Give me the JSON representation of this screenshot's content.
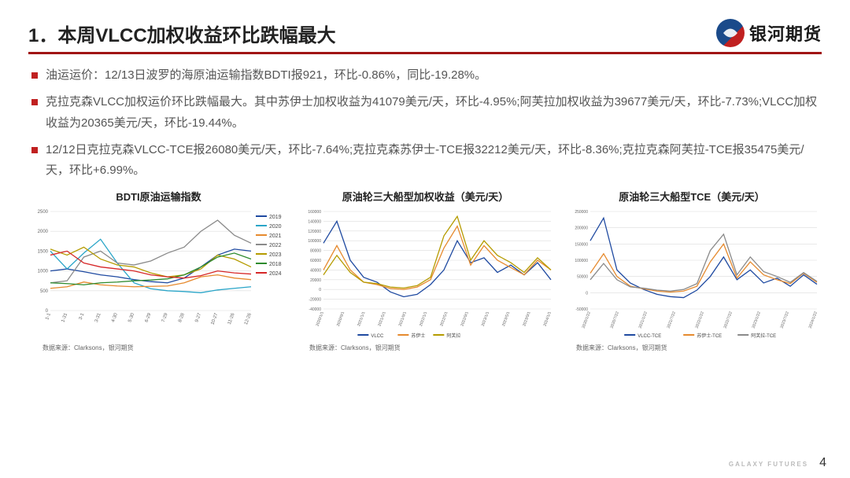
{
  "header": {
    "title": "1．本周VLCC加权收益环比跌幅最大",
    "logo_text": "银河期货"
  },
  "rule_color": "#a01414",
  "bullets": [
    "油运运价：12/13日波罗的海原油运输指数BDTI报921，环比-0.86%，同比-19.28%。",
    "克拉克森VLCC加权运价环比跌幅最大。其中苏伊士加权收益为41079美元/天，环比-4.95%;阿芙拉加权收益为39677美元/天，环比-7.73%;VLCC加权收益为20365美元/天，环比-19.44%。",
    "12/12日克拉克森VLCC-TCE报26080美元/天，环比-7.64%;克拉克森苏伊士-TCE报32212美元/天，环比-8.36%;克拉克森阿芙拉-TCE报35475美元/天，环比+6.99%。"
  ],
  "charts": {
    "bdti": {
      "title": "BDTI原油运输指数",
      "type": "line",
      "ylim": [
        0,
        2500
      ],
      "ytick_step": 500,
      "x_labels": [
        "1-1",
        "1-31",
        "3-1",
        "3-31",
        "4-30",
        "5-30",
        "6-29",
        "7-29",
        "8-28",
        "9-27",
        "10-27",
        "11-26",
        "12-26"
      ],
      "grid_color": "#dcdcdc",
      "background_color": "#ffffff",
      "label_fontsize": 6,
      "title_fontsize": 13,
      "series": [
        {
          "name": "2019",
          "color": "#1f4aa1",
          "data": [
            1000,
            1050,
            980,
            900,
            850,
            780,
            730,
            700,
            820,
            1100,
            1400,
            1550,
            1500
          ]
        },
        {
          "name": "2020",
          "color": "#2aa5c8",
          "data": [
            1500,
            1050,
            1450,
            1800,
            1200,
            700,
            550,
            500,
            480,
            450,
            520,
            560,
            600
          ]
        },
        {
          "name": "2021",
          "color": "#e68a2e",
          "data": [
            560,
            600,
            720,
            650,
            620,
            600,
            610,
            620,
            700,
            850,
            900,
            820,
            780
          ]
        },
        {
          "name": "2022",
          "color": "#8a8a8a",
          "data": [
            700,
            750,
            1350,
            1500,
            1200,
            1150,
            1250,
            1450,
            1600,
            2000,
            2280,
            1900,
            1700
          ]
        },
        {
          "name": "2023",
          "color": "#b59b00",
          "data": [
            1550,
            1400,
            1600,
            1300,
            1150,
            1100,
            950,
            850,
            900,
            1050,
            1400,
            1300,
            1100
          ]
        },
        {
          "name": "2018",
          "color": "#2e8b2e",
          "data": [
            700,
            680,
            650,
            700,
            720,
            750,
            770,
            800,
            900,
            1100,
            1350,
            1450,
            1300
          ]
        },
        {
          "name": "2024",
          "color": "#d62728",
          "data": [
            1400,
            1500,
            1200,
            1100,
            1050,
            1000,
            900,
            850,
            820,
            880,
            1000,
            950,
            921
          ]
        }
      ],
      "source": "数据来源：Clarksons，银河期货"
    },
    "weighted": {
      "title": "原油轮三大船型加权收益（美元/天）",
      "type": "line",
      "ylim": [
        -40000,
        160000
      ],
      "ytick_step": 20000,
      "x_labels": [
        "2020/1/1",
        "2020/9/1",
        "2021/1/1",
        "2021/5/1",
        "2021/9/1",
        "2022/1/1",
        "2022/5/1",
        "2022/9/1",
        "2023/1/1",
        "2023/5/1",
        "2023/9/1",
        "2024/1/1"
      ],
      "grid_color": "#dcdcdc",
      "background_color": "#ffffff",
      "label_fontsize": 5,
      "title_fontsize": 13,
      "series": [
        {
          "name": "VLCC",
          "color": "#1f4aa1",
          "data": [
            95000,
            140000,
            60000,
            25000,
            15000,
            -5000,
            -15000,
            -10000,
            10000,
            40000,
            100000,
            55000,
            65000,
            35000,
            50000,
            30000,
            55000,
            20000
          ]
        },
        {
          "name": "苏伊士",
          "color": "#e68a2e",
          "data": [
            40000,
            90000,
            40000,
            15000,
            10000,
            2000,
            0,
            5000,
            20000,
            85000,
            130000,
            50000,
            90000,
            60000,
            45000,
            30000,
            60000,
            40000
          ]
        },
        {
          "name": "阿芙拉",
          "color": "#b59b00",
          "data": [
            30000,
            70000,
            35000,
            15000,
            12000,
            5000,
            3000,
            8000,
            25000,
            110000,
            150000,
            60000,
            100000,
            70000,
            55000,
            35000,
            65000,
            40000
          ]
        }
      ],
      "source": "数据来源：Clarksons，银河期货"
    },
    "tce": {
      "title": "原油轮三大船型TCE（美元/天）",
      "type": "line",
      "ylim": [
        -50000,
        250000
      ],
      "ytick_step": 50000,
      "x_labels": [
        "2020/1/22",
        "2020/7/22",
        "2021/1/22",
        "2021/7/22",
        "2022/1/22",
        "2022/7/22",
        "2023/1/22",
        "2023/7/22",
        "2024/1/22"
      ],
      "grid_color": "#dcdcdc",
      "background_color": "#ffffff",
      "label_fontsize": 5,
      "title_fontsize": 13,
      "series": [
        {
          "name": "VLCC-TCE",
          "color": "#1f4aa1",
          "data": [
            160000,
            230000,
            70000,
            30000,
            10000,
            -5000,
            -12000,
            -15000,
            8000,
            50000,
            110000,
            40000,
            70000,
            30000,
            45000,
            20000,
            55000,
            26000
          ]
        },
        {
          "name": "苏伊士-TCE",
          "color": "#e68a2e",
          "data": [
            60000,
            120000,
            50000,
            20000,
            12000,
            5000,
            2000,
            5000,
            20000,
            95000,
            150000,
            45000,
            95000,
            55000,
            40000,
            28000,
            60000,
            32000
          ]
        },
        {
          "name": "阿芙拉-TCE",
          "color": "#8a8a8a",
          "data": [
            40000,
            90000,
            40000,
            18000,
            14000,
            8000,
            5000,
            10000,
            28000,
            130000,
            180000,
            55000,
            110000,
            65000,
            50000,
            32000,
            62000,
            35000
          ]
        }
      ],
      "source": "数据来源：Clarksons，银河期货"
    }
  },
  "footer": {
    "brand": "GALAXY FUTURES",
    "page": "4"
  }
}
